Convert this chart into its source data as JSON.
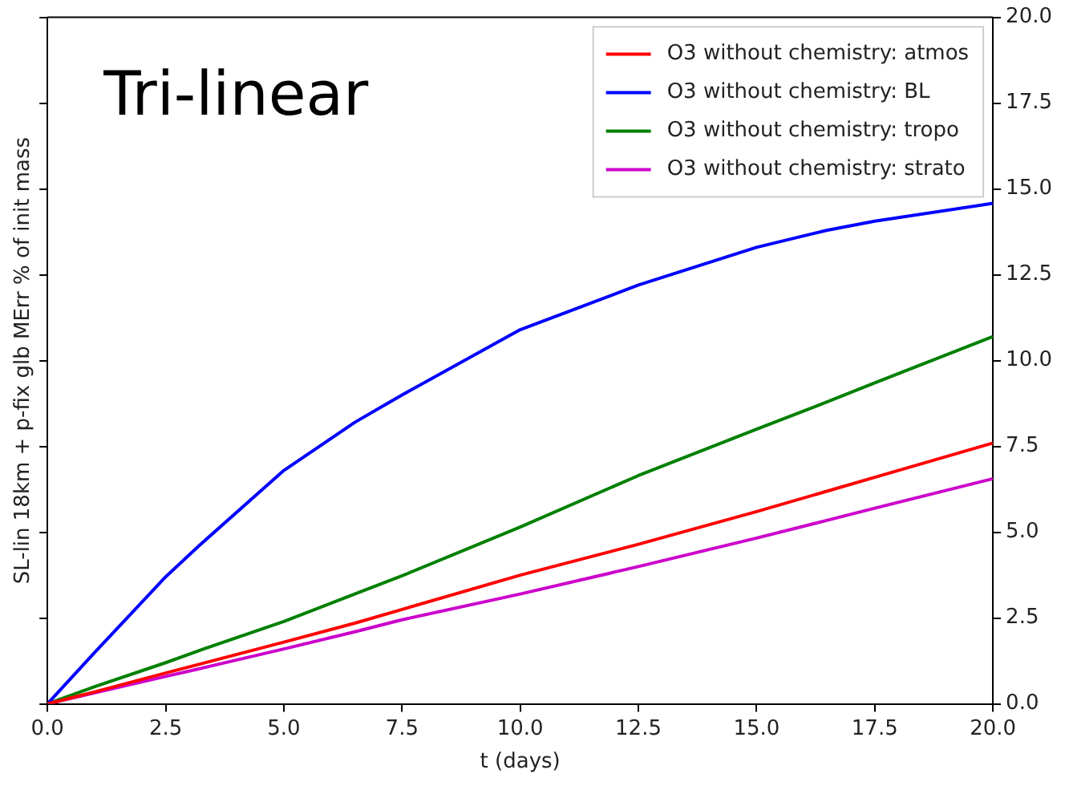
{
  "chart_data": {
    "type": "line",
    "annotations": [
      "Tri-linear"
    ],
    "xlabel": "t (days)",
    "ylabel": "SL-lin 18km + p-fix glb MErr % of init mass",
    "x": [
      0,
      1,
      2.5,
      3.2,
      5,
      6.5,
      7.5,
      10,
      12.5,
      15,
      16.5,
      17.5,
      20
    ],
    "xlim": [
      0,
      20
    ],
    "xticks": [
      {
        "value": 0,
        "label": "0.0"
      },
      {
        "value": 2.5,
        "label": "2.5"
      },
      {
        "value": 5,
        "label": "5.0"
      },
      {
        "value": 7.5,
        "label": "7.5"
      },
      {
        "value": 10,
        "label": "10.0"
      },
      {
        "value": 12.5,
        "label": "12.5"
      },
      {
        "value": 15,
        "label": "15.0"
      },
      {
        "value": 17.5,
        "label": "17.5"
      },
      {
        "value": 20,
        "label": "20.0"
      }
    ],
    "ylim": [
      0,
      20
    ],
    "yticks": [
      {
        "value": 0,
        "label": "0.0"
      },
      {
        "value": 2.5,
        "label": "2.5"
      },
      {
        "value": 5,
        "label": "5.0"
      },
      {
        "value": 7.5,
        "label": "7.5"
      },
      {
        "value": 10,
        "label": "10.0"
      },
      {
        "value": 12.5,
        "label": "12.5"
      },
      {
        "value": 15,
        "label": "15.0"
      },
      {
        "value": 17.5,
        "label": "17.5"
      },
      {
        "value": 20,
        "label": "20.0"
      }
    ],
    "series": [
      {
        "name": "O3 without chemistry: atmos",
        "color": "#ff0000",
        "values": [
          0,
          0.35,
          0.9,
          1.15,
          1.8,
          2.35,
          2.75,
          3.75,
          4.65,
          5.6,
          6.2,
          6.6,
          7.6
        ]
      },
      {
        "name": "O3 without chemistry: BL",
        "color": "#0000ff",
        "values": [
          0,
          1.5,
          3.7,
          4.6,
          6.8,
          8.2,
          9.0,
          10.9,
          12.2,
          13.3,
          13.8,
          14.06,
          14.58
        ]
      },
      {
        "name": "O3 without chemistry: tropo",
        "color": "#008000",
        "values": [
          0,
          0.5,
          1.2,
          1.55,
          2.4,
          3.2,
          3.73,
          5.15,
          6.65,
          8.0,
          8.8,
          9.35,
          10.7
        ]
      },
      {
        "name": "O3 without chemistry: strato",
        "color": "#cc00cc",
        "values": [
          0,
          0.32,
          0.8,
          1.02,
          1.6,
          2.1,
          2.45,
          3.2,
          4.0,
          4.83,
          5.35,
          5.7,
          6.56
        ]
      }
    ],
    "legend": "top right",
    "grid": false,
    "marker": "none",
    "line_style": "solid"
  }
}
